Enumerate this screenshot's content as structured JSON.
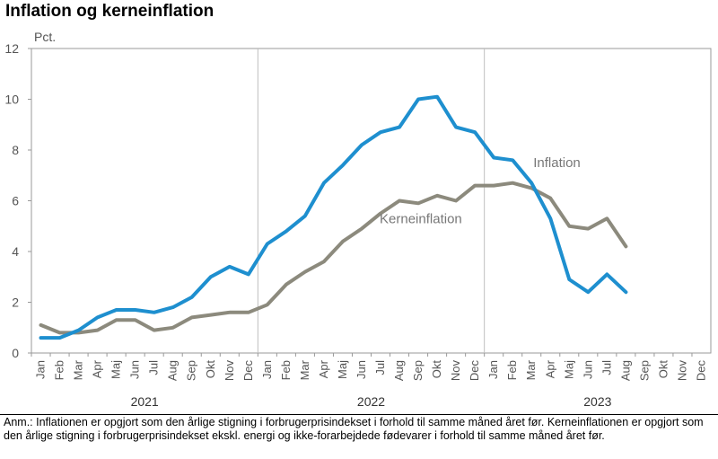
{
  "title": "Inflation og kerneinflation",
  "note": "Anm.: Inflationen er opgjort som den årlige stigning i forbrugerprisindekset i forhold til samme måned året før. Kerneinflationen er opgjort som den årlige stigning i forbrugerprisindekset ekskl. energi og ikke-forarbejdede fødevarer i forhold til samme måned året før.",
  "chart_data": {
    "type": "line",
    "ylabel": "Pct.",
    "ylim": [
      0,
      12
    ],
    "yticks": [
      0,
      2,
      4,
      6,
      8,
      10,
      12
    ],
    "grid": false,
    "months": [
      "Jan",
      "Feb",
      "Mar",
      "Apr",
      "Maj",
      "Jun",
      "Jul",
      "Aug",
      "Sep",
      "Okt",
      "Nov",
      "Dec"
    ],
    "years": [
      "2021",
      "2022",
      "2023"
    ],
    "colors": {
      "axis": "#999999",
      "divider": "#bfbfbf"
    },
    "series": [
      {
        "name": "Inflation",
        "color": "#1e8fcf",
        "values": [
          0.6,
          0.6,
          0.9,
          1.4,
          1.7,
          1.7,
          1.6,
          1.8,
          2.2,
          3.0,
          3.4,
          3.1,
          4.3,
          4.8,
          5.4,
          6.7,
          7.4,
          8.2,
          8.7,
          8.9,
          10.0,
          10.1,
          8.9,
          8.7,
          7.7,
          7.6,
          6.7,
          5.3,
          2.9,
          2.4,
          3.1,
          2.4
        ]
      },
      {
        "name": "Kerneinflation",
        "color": "#8c8a7d",
        "values": [
          1.1,
          0.8,
          0.8,
          0.9,
          1.3,
          1.3,
          0.9,
          1.0,
          1.4,
          1.5,
          1.6,
          1.6,
          1.9,
          2.7,
          3.2,
          3.6,
          4.4,
          4.9,
          5.5,
          6.0,
          5.9,
          6.2,
          6.0,
          6.6,
          6.6,
          6.7,
          6.5,
          6.1,
          5.0,
          4.9,
          5.3,
          4.2
        ]
      }
    ]
  }
}
